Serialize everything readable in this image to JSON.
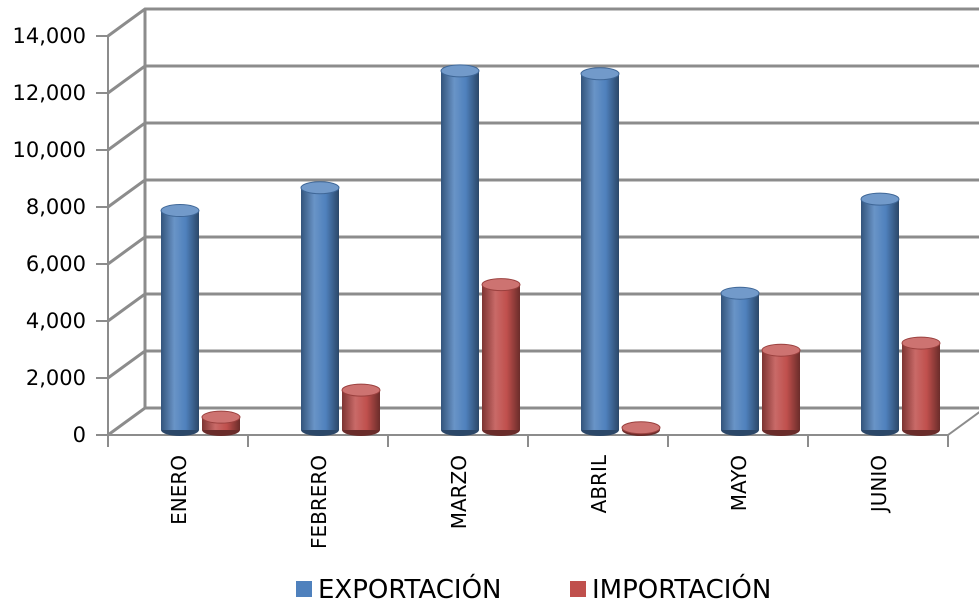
{
  "chart_data": {
    "type": "bar",
    "title": "",
    "xlabel": "",
    "ylabel": "",
    "categories": [
      "ENERO",
      "FEBRERO",
      "MARZO",
      "ABRIL",
      "MAYO",
      "JUNIO"
    ],
    "series": [
      {
        "name": "EXPORTACIÓN",
        "color": "#4f81bd",
        "values": [
          7700,
          8500,
          12600,
          12500,
          4800,
          8100
        ]
      },
      {
        "name": "IMPORTACIÓN",
        "color": "#c0504d",
        "values": [
          450,
          1400,
          5100,
          80,
          2800,
          3050
        ]
      }
    ],
    "ylim": [
      0,
      14000
    ],
    "yticks": [
      "0",
      "2,000",
      "4,000",
      "6,000",
      "8,000",
      "10,000",
      "12,000",
      "14,000"
    ],
    "grid": true,
    "legend_position": "bottom",
    "style": "3d-cylinder"
  }
}
